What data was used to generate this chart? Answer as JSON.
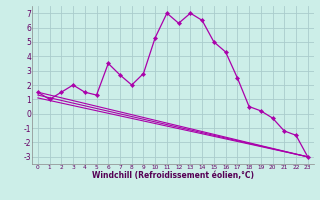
{
  "xlabel": "Windchill (Refroidissement éolien,°C)",
  "background_color": "#cceee8",
  "grid_color": "#aacccc",
  "line_color": "#aa00aa",
  "ylim": [
    -3.5,
    7.5
  ],
  "xlim": [
    -0.5,
    23.5
  ],
  "yticks": [
    -3,
    -2,
    -1,
    0,
    1,
    2,
    3,
    4,
    5,
    6,
    7
  ],
  "xticks": [
    0,
    1,
    2,
    3,
    4,
    5,
    6,
    7,
    8,
    9,
    10,
    11,
    12,
    13,
    14,
    15,
    16,
    17,
    18,
    19,
    20,
    21,
    22,
    23
  ],
  "series1_x": [
    0,
    1,
    2,
    3,
    4,
    5,
    6,
    7,
    8,
    9,
    10,
    11,
    12,
    13,
    14,
    15,
    16,
    17,
    18,
    19,
    20,
    21,
    22,
    23
  ],
  "series1_y": [
    1.5,
    1.0,
    1.5,
    2.0,
    1.5,
    1.3,
    3.5,
    2.7,
    2.0,
    2.8,
    5.3,
    7.0,
    6.3,
    7.0,
    6.5,
    5.0,
    4.3,
    2.5,
    0.5,
    0.2,
    -0.3,
    -1.2,
    -1.5,
    -3.0
  ],
  "trend1_x": [
    0,
    23
  ],
  "trend1_y": [
    1.5,
    -3.0
  ],
  "trend2_x": [
    0,
    23
  ],
  "trend2_y": [
    1.3,
    -3.0
  ],
  "trend3_x": [
    0,
    23
  ],
  "trend3_y": [
    1.1,
    -3.0
  ]
}
